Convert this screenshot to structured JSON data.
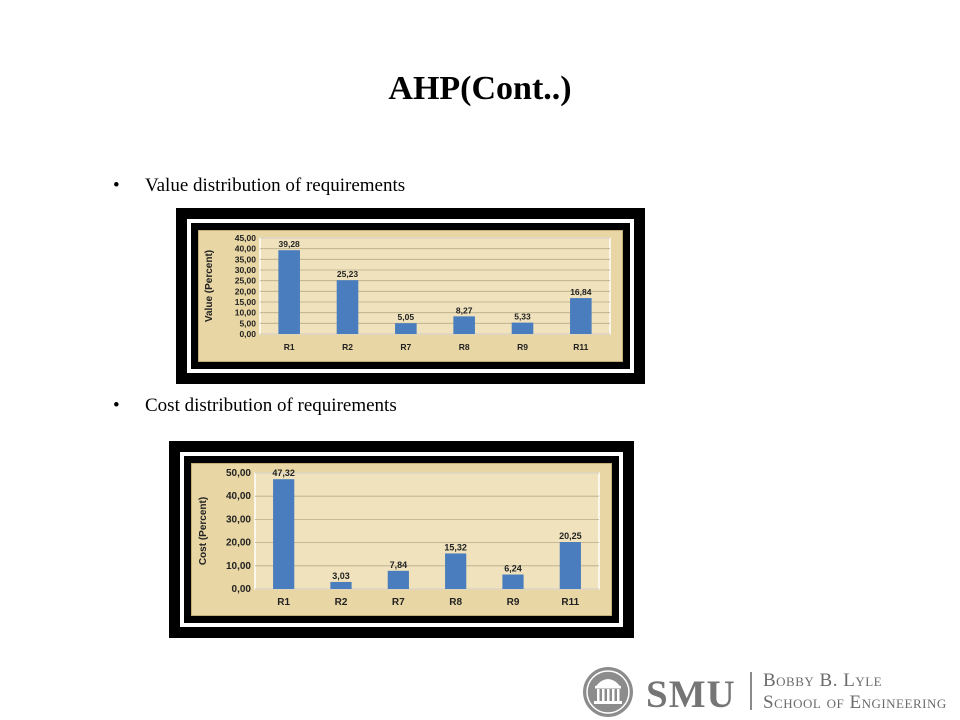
{
  "slide": {
    "title": "AHP(Cont..)"
  },
  "bullets": [
    {
      "text": "Value distribution of requirements"
    },
    {
      "text": "Cost distribution of requirements"
    }
  ],
  "colors": {
    "bar": "#4a7dbd",
    "parchment": "#e8d6a4",
    "frame": "#000000"
  },
  "chart_data": [
    {
      "type": "bar",
      "categories": [
        "R1",
        "R2",
        "R7",
        "R8",
        "R9",
        "R11"
      ],
      "values": [
        39.28,
        25.23,
        5.05,
        8.27,
        5.33,
        16.84
      ],
      "data_labels": [
        "39,28",
        "25,23",
        "5,05",
        "8,27",
        "5,33",
        "16,84"
      ],
      "ylabel": "Value (Percent)",
      "ylim": [
        0,
        45
      ],
      "yticks": [
        "0,00",
        "5,00",
        "10,00",
        "15,00",
        "20,00",
        "25,00",
        "30,00",
        "35,00",
        "40,00",
        "45,00"
      ],
      "grid": true
    },
    {
      "type": "bar",
      "categories": [
        "R1",
        "R2",
        "R7",
        "R8",
        "R9",
        "R11"
      ],
      "values": [
        47.32,
        3.03,
        7.84,
        15.32,
        6.24,
        20.25
      ],
      "data_labels": [
        "47,32",
        "3,03",
        "7,84",
        "15,32",
        "6,24",
        "20,25"
      ],
      "ylabel": "Cost (Percent)",
      "ylim": [
        0,
        50
      ],
      "yticks": [
        "0,00",
        "10,00",
        "20,00",
        "30,00",
        "40,00",
        "50,00"
      ],
      "grid": true
    }
  ],
  "footer": {
    "logo": "SMU",
    "school_line1": "Bobby B. Lyle",
    "school_line2": "School of Engineering",
    "icon": "dallas-hall-seal-icon"
  }
}
